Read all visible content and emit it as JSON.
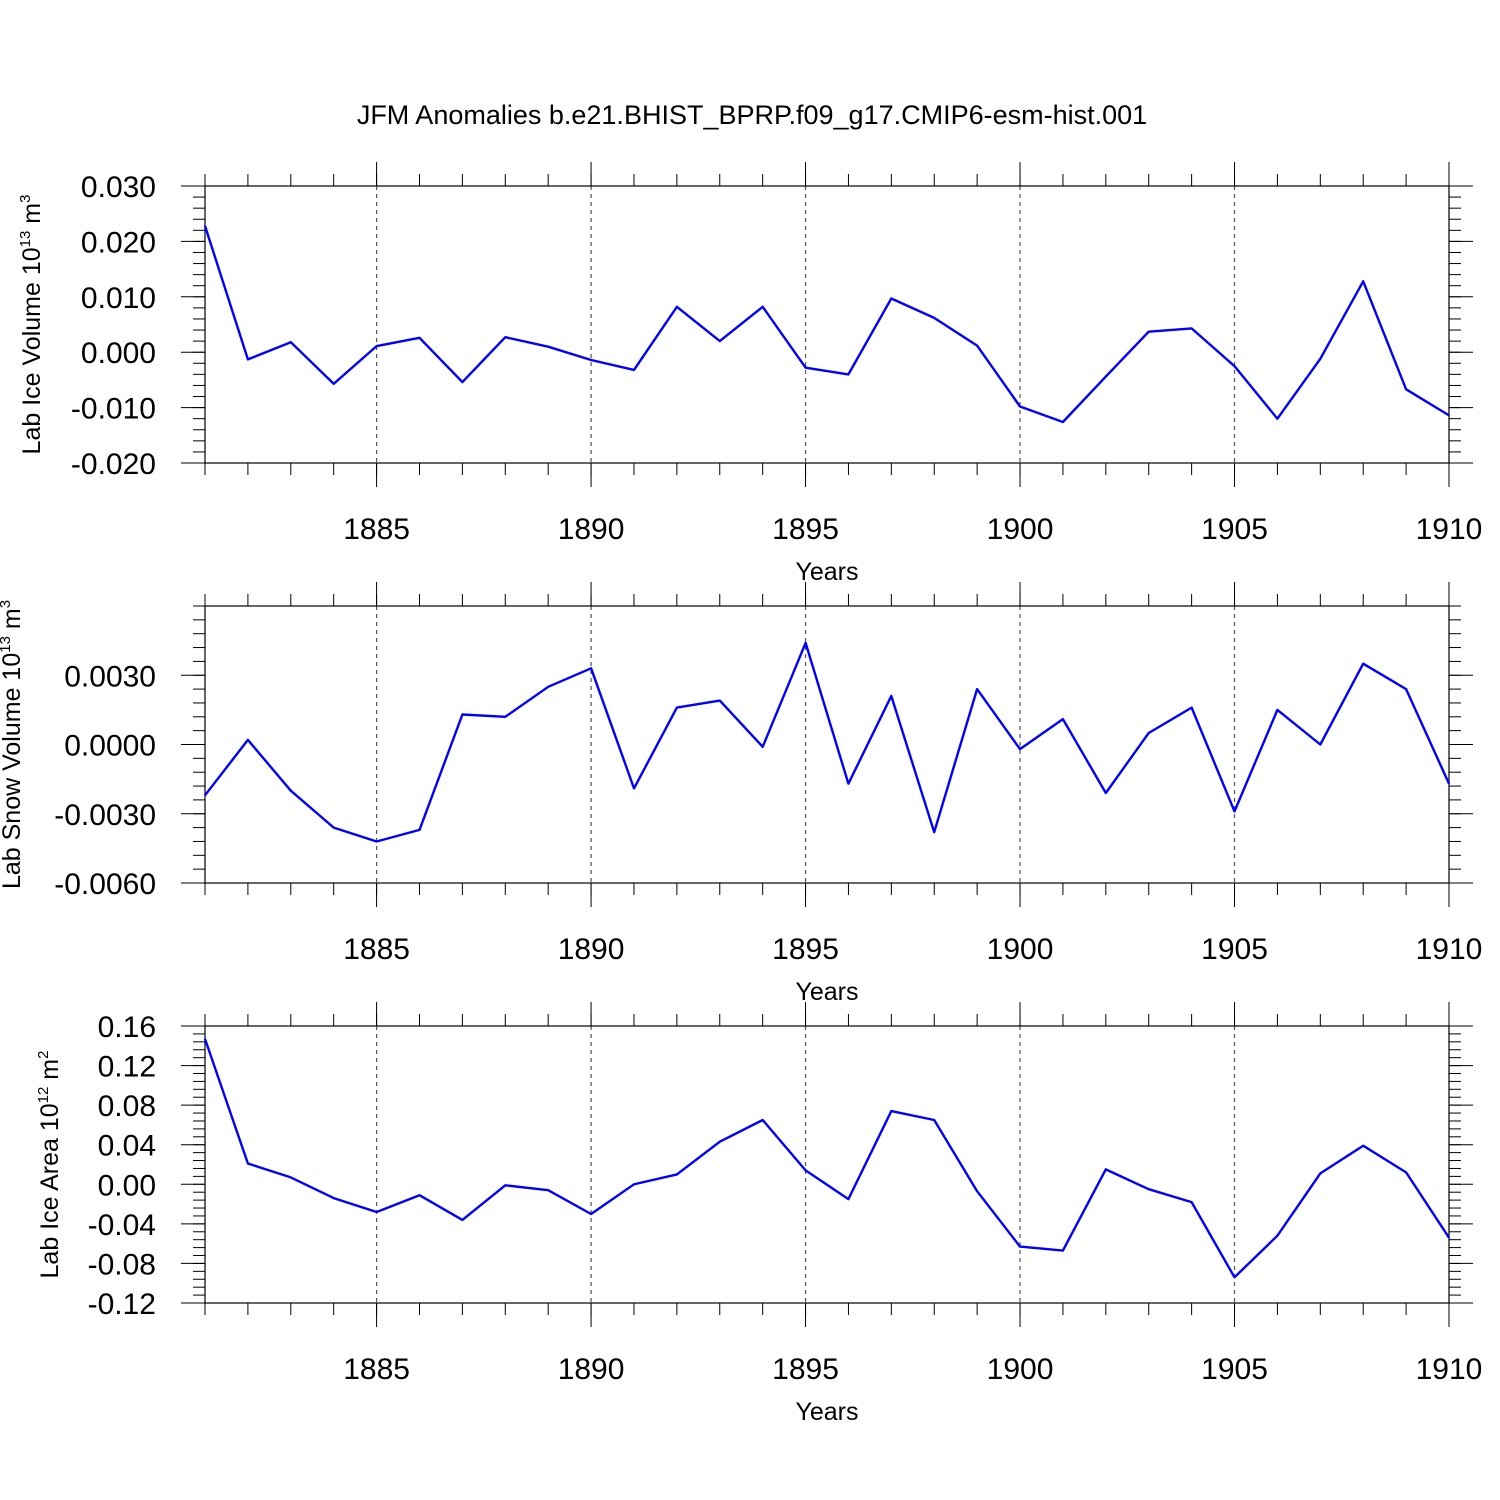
{
  "figure": {
    "title": "JFM Anomalies b.e21.BHIST_BPRP.f09_g17.CMIP6-esm-hist.001"
  },
  "colors": {
    "series": "#0000ff",
    "axis": "#000000",
    "grid": "#555555"
  },
  "chart_data": [
    {
      "type": "line",
      "ylabel": "Lab Ice Volume 10",
      "ylabel_exponent": "13",
      "ylabel_unit": "m",
      "ylabel_unit_exponent": "3",
      "xlabel": "Years",
      "xlim": [
        1881,
        1910
      ],
      "ylim": [
        -0.02,
        0.03
      ],
      "xticks": [
        1885,
        1890,
        1895,
        1900,
        1905,
        1910
      ],
      "yticks": [
        -0.02,
        -0.01,
        0.0,
        0.01,
        0.02,
        0.03
      ],
      "ytick_labels": [
        "-0.020",
        "-0.010",
        "0.000",
        "0.010",
        "0.020",
        "0.030"
      ],
      "xgrid_dashed": [
        1885,
        1890,
        1895,
        1900,
        1905
      ],
      "x": [
        1881,
        1882,
        1883,
        1884,
        1885,
        1886,
        1887,
        1888,
        1889,
        1890,
        1891,
        1892,
        1893,
        1894,
        1895,
        1896,
        1897,
        1898,
        1899,
        1900,
        1901,
        1902,
        1903,
        1904,
        1905,
        1906,
        1907,
        1908,
        1909,
        1910
      ],
      "series": [
        {
          "name": "Lab Ice Volume",
          "values": [
            0.0228,
            -0.0013,
            0.0018,
            -0.0057,
            0.0011,
            0.0026,
            -0.0054,
            0.0027,
            0.001,
            -0.0014,
            -0.0032,
            0.0082,
            0.002,
            0.0082,
            -0.0028,
            -0.004,
            0.0097,
            0.0062,
            0.0012,
            -0.0098,
            -0.0126,
            -0.0044,
            0.0037,
            0.0043,
            -0.0025,
            -0.012,
            -0.0012,
            0.0128,
            -0.0067,
            -0.0114
          ]
        }
      ]
    },
    {
      "type": "line",
      "ylabel": "Lab Snow Volume 10",
      "ylabel_exponent": "13",
      "ylabel_unit": "m",
      "ylabel_unit_exponent": "3",
      "xlabel": "Years",
      "xlim": [
        1881,
        1910
      ],
      "ylim": [
        -0.006,
        0.006
      ],
      "xticks": [
        1885,
        1890,
        1895,
        1900,
        1905,
        1910
      ],
      "yticks": [
        -0.006,
        -0.003,
        0.0,
        0.003
      ],
      "ytick_labels": [
        "-0.0060",
        "-0.0030",
        "0.0000",
        "0.0030"
      ],
      "xgrid_dashed": [
        1885,
        1890,
        1895,
        1900,
        1905
      ],
      "x": [
        1881,
        1882,
        1883,
        1884,
        1885,
        1886,
        1887,
        1888,
        1889,
        1890,
        1891,
        1892,
        1893,
        1894,
        1895,
        1896,
        1897,
        1898,
        1899,
        1900,
        1901,
        1902,
        1903,
        1904,
        1905,
        1906,
        1907,
        1908,
        1909,
        1910
      ],
      "series": [
        {
          "name": "Lab Snow Volume",
          "values": [
            -0.0022,
            0.0002,
            -0.002,
            -0.0036,
            -0.0042,
            -0.0037,
            0.0013,
            0.0012,
            0.0025,
            0.0033,
            -0.0019,
            0.0016,
            0.0019,
            -0.0001,
            0.0044,
            -0.0017,
            0.0021,
            -0.0038,
            0.0024,
            -0.0002,
            0.0011,
            -0.0021,
            0.0005,
            0.0016,
            -0.0029,
            0.0015,
            0.0,
            0.0035,
            0.0024,
            -0.0017
          ]
        }
      ]
    },
    {
      "type": "line",
      "ylabel": "Lab Ice Area 10",
      "ylabel_exponent": "12",
      "ylabel_unit": "m",
      "ylabel_unit_exponent": "2",
      "xlabel": "Years",
      "xlim": [
        1881,
        1910
      ],
      "ylim": [
        -0.12,
        0.16
      ],
      "xticks": [
        1885,
        1890,
        1895,
        1900,
        1905,
        1910
      ],
      "yticks": [
        -0.12,
        -0.08,
        -0.04,
        0.0,
        0.04,
        0.08,
        0.12,
        0.16
      ],
      "ytick_labels": [
        "-0.12",
        "-0.08",
        "-0.04",
        "0.00",
        "0.04",
        "0.08",
        "0.12",
        "0.16"
      ],
      "xgrid_dashed": [
        1885,
        1890,
        1895,
        1900,
        1905
      ],
      "x": [
        1881,
        1882,
        1883,
        1884,
        1885,
        1886,
        1887,
        1888,
        1889,
        1890,
        1891,
        1892,
        1893,
        1894,
        1895,
        1896,
        1897,
        1898,
        1899,
        1900,
        1901,
        1902,
        1903,
        1904,
        1905,
        1906,
        1907,
        1908,
        1909,
        1910
      ],
      "series": [
        {
          "name": "Lab Ice Area",
          "values": [
            0.147,
            0.021,
            0.007,
            -0.014,
            -0.028,
            -0.011,
            -0.036,
            -0.001,
            -0.006,
            -0.03,
            -0.0,
            0.01,
            0.043,
            0.065,
            0.014,
            -0.015,
            0.074,
            0.065,
            -0.007,
            -0.063,
            -0.067,
            0.015,
            -0.005,
            -0.018,
            -0.094,
            -0.052,
            0.011,
            0.039,
            0.012,
            -0.054
          ]
        }
      ]
    }
  ]
}
